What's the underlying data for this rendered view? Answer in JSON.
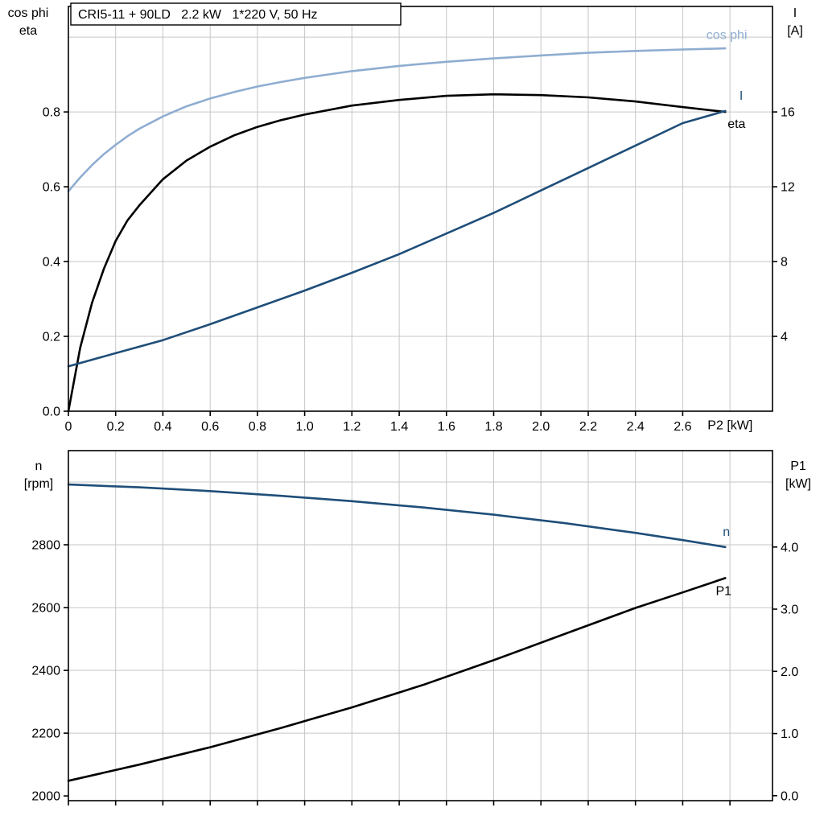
{
  "header": {
    "title_box": "CRI5-11 + 90LD   2.2 kW   1*220 V, 50 Hz"
  },
  "axis_headers": {
    "top_left_1": "cos phi",
    "top_left_2": "eta",
    "top_right_1": "I",
    "top_right_2": "[A]",
    "bottom_left_1": "n",
    "bottom_left_2": "[rpm]",
    "bottom_right_1": "P1",
    "bottom_right_2": "[kW]"
  },
  "colors": {
    "light_blue": "#8fadd1",
    "dark_blue": "#1f4e79",
    "black": "#000000",
    "grid": "#c6c6c6",
    "frame": "#000000"
  },
  "chart_data": [
    {
      "type": "line",
      "title": "CRI5-11 + 90LD 2.2 kW 1*220 V, 50 Hz",
      "xlabel": "P2 [kW]",
      "xlim": [
        0,
        2.98
      ],
      "x_ticks": [
        {
          "v": 0,
          "label": "0"
        },
        {
          "v": 0.2,
          "label": "0.2"
        },
        {
          "v": 0.4,
          "label": "0.4"
        },
        {
          "v": 0.6,
          "label": "0.6"
        },
        {
          "v": 0.8,
          "label": "0.8"
        },
        {
          "v": 1.0,
          "label": "1.0"
        },
        {
          "v": 1.2,
          "label": "1.2"
        },
        {
          "v": 1.4,
          "label": "1.4"
        },
        {
          "v": 1.6,
          "label": "1.6"
        },
        {
          "v": 1.8,
          "label": "1.8"
        },
        {
          "v": 2.0,
          "label": "2.0"
        },
        {
          "v": 2.2,
          "label": "2.2"
        },
        {
          "v": 2.4,
          "label": "2.4"
        },
        {
          "v": 2.6,
          "label": "2.6"
        }
      ],
      "grid_x": [
        0.2,
        0.4,
        0.6,
        0.8,
        1.0,
        1.2,
        1.4,
        1.6,
        1.8,
        2.0,
        2.2,
        2.4,
        2.6,
        2.8
      ],
      "left_axis": {
        "name": "cos phi / eta",
        "lim": [
          0,
          1.082
        ],
        "ticks": [
          {
            "v": 0,
            "label": "0.0"
          },
          {
            "v": 0.2,
            "label": "0.2"
          },
          {
            "v": 0.4,
            "label": "0.4"
          },
          {
            "v": 0.6,
            "label": "0.6"
          },
          {
            "v": 0.8,
            "label": "0.8"
          }
        ],
        "grid": [
          0.2,
          0.4,
          0.6,
          0.8,
          1.0
        ]
      },
      "right_axis": {
        "name": "I [A]",
        "lim": [
          0,
          21.64
        ],
        "ticks": [
          {
            "v": 4,
            "label": "4"
          },
          {
            "v": 8,
            "label": "8"
          },
          {
            "v": 12,
            "label": "12"
          },
          {
            "v": 16,
            "label": "16"
          }
        ]
      },
      "series": [
        {
          "name": "cos phi",
          "axis": "left",
          "color": "light_blue",
          "x": [
            0,
            0.05,
            0.1,
            0.15,
            0.2,
            0.25,
            0.3,
            0.4,
            0.5,
            0.6,
            0.7,
            0.8,
            0.9,
            1.0,
            1.2,
            1.4,
            1.6,
            1.8,
            2.0,
            2.2,
            2.4,
            2.6,
            2.78
          ],
          "y": [
            0.588,
            0.625,
            0.658,
            0.687,
            0.712,
            0.735,
            0.755,
            0.788,
            0.815,
            0.836,
            0.853,
            0.868,
            0.88,
            0.891,
            0.909,
            0.923,
            0.934,
            0.943,
            0.951,
            0.958,
            0.963,
            0.967,
            0.97
          ]
        },
        {
          "name": "eta",
          "axis": "left",
          "color": "black",
          "x": [
            0,
            0.05,
            0.1,
            0.15,
            0.2,
            0.25,
            0.3,
            0.4,
            0.5,
            0.6,
            0.7,
            0.8,
            0.9,
            1.0,
            1.2,
            1.4,
            1.6,
            1.8,
            2.0,
            2.2,
            2.4,
            2.6,
            2.78
          ],
          "y": [
            0,
            0.17,
            0.29,
            0.38,
            0.455,
            0.51,
            0.55,
            0.62,
            0.67,
            0.707,
            0.737,
            0.76,
            0.778,
            0.793,
            0.817,
            0.832,
            0.843,
            0.847,
            0.845,
            0.839,
            0.828,
            0.813,
            0.8
          ]
        },
        {
          "name": "I",
          "axis": "right",
          "color": "dark_blue",
          "x": [
            0,
            0.2,
            0.4,
            0.6,
            0.8,
            1.0,
            1.2,
            1.4,
            1.6,
            1.8,
            2.0,
            2.2,
            2.4,
            2.6,
            2.78
          ],
          "y": [
            2.4,
            3.1,
            3.8,
            4.65,
            5.55,
            6.45,
            7.4,
            8.4,
            9.5,
            10.6,
            11.8,
            13.0,
            14.2,
            15.4,
            16.05
          ]
        }
      ],
      "annotations": [
        {
          "text": "cos phi",
          "x": 2.7,
          "y": 0.995,
          "axis": "left",
          "color": "light_blue",
          "anchor": "start"
        },
        {
          "text": "I",
          "x": 2.84,
          "y": 0.832,
          "axis": "left",
          "color": "dark_blue",
          "anchor": "start"
        },
        {
          "text": "eta",
          "x": 2.79,
          "y": 0.757,
          "axis": "left",
          "color": "black",
          "anchor": "start"
        },
        {
          "text": "P2 [kW]",
          "x": 2.705,
          "y": -0.048,
          "axis": "left",
          "color": "black",
          "anchor": "start"
        }
      ]
    },
    {
      "type": "line",
      "title": "",
      "xlabel": "",
      "xlim": [
        0,
        2.98
      ],
      "x_ticks": [
        {
          "v": 0,
          "label": ""
        },
        {
          "v": 0.2,
          "label": ""
        },
        {
          "v": 0.4,
          "label": ""
        },
        {
          "v": 0.6,
          "label": ""
        },
        {
          "v": 0.8,
          "label": ""
        },
        {
          "v": 1.0,
          "label": ""
        },
        {
          "v": 1.2,
          "label": ""
        },
        {
          "v": 1.4,
          "label": ""
        },
        {
          "v": 1.6,
          "label": ""
        },
        {
          "v": 1.8,
          "label": ""
        },
        {
          "v": 2.0,
          "label": ""
        },
        {
          "v": 2.2,
          "label": ""
        },
        {
          "v": 2.4,
          "label": ""
        },
        {
          "v": 2.6,
          "label": ""
        },
        {
          "v": 2.8,
          "label": ""
        }
      ],
      "grid_x": [
        0.2,
        0.4,
        0.6,
        0.8,
        1.0,
        1.2,
        1.4,
        1.6,
        1.8,
        2.0,
        2.2,
        2.4,
        2.6,
        2.8
      ],
      "left_axis": {
        "name": "n [rpm]",
        "lim": [
          1985,
          3100
        ],
        "ticks": [
          {
            "v": 2000,
            "label": "2000"
          },
          {
            "v": 2200,
            "label": "2200"
          },
          {
            "v": 2400,
            "label": "2400"
          },
          {
            "v": 2600,
            "label": "2600"
          },
          {
            "v": 2800,
            "label": "2800"
          }
        ],
        "grid": [
          2200,
          2400,
          2600,
          2800,
          3000
        ]
      },
      "right_axis": {
        "name": "P1 [kW]",
        "lim": [
          -0.08,
          5.55
        ],
        "ticks": [
          {
            "v": 0,
            "label": "0.0"
          },
          {
            "v": 1,
            "label": "1.0"
          },
          {
            "v": 2,
            "label": "2.0"
          },
          {
            "v": 3,
            "label": "3.0"
          },
          {
            "v": 4,
            "label": "4.0"
          }
        ]
      },
      "series": [
        {
          "name": "n",
          "axis": "left",
          "color": "dark_blue",
          "x": [
            0,
            0.3,
            0.6,
            0.9,
            1.2,
            1.5,
            1.8,
            2.1,
            2.4,
            2.6,
            2.78
          ],
          "y": [
            2992,
            2983,
            2971,
            2956,
            2939,
            2919,
            2896,
            2869,
            2838,
            2815,
            2793
          ]
        },
        {
          "name": "P1",
          "axis": "right",
          "color": "black",
          "x": [
            0,
            0.3,
            0.6,
            0.9,
            1.2,
            1.5,
            1.8,
            2.1,
            2.4,
            2.6,
            2.78
          ],
          "y": [
            0.24,
            0.5,
            0.78,
            1.09,
            1.42,
            1.78,
            2.18,
            2.6,
            3.02,
            3.27,
            3.5
          ]
        }
      ],
      "annotations": [
        {
          "text": "n",
          "x": 2.77,
          "y": 2828,
          "axis": "left",
          "color": "dark_blue",
          "anchor": "start"
        },
        {
          "text": "P1",
          "x": 2.74,
          "y": 2640,
          "axis": "left",
          "color": "black",
          "anchor": "start"
        }
      ]
    }
  ]
}
